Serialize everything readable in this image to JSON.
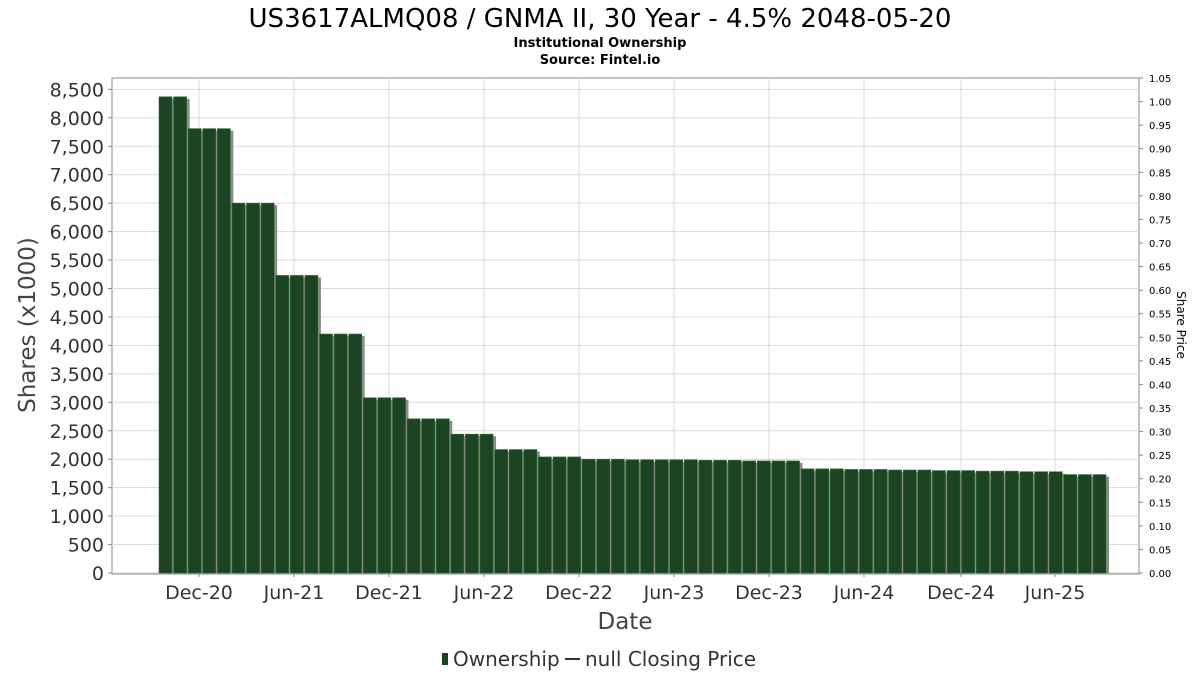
{
  "title": "US3617ALMQ08 / GNMA II, 30 Year - 4.5% 2048-05-20",
  "subtitle_lines": [
    "Institutional Ownership",
    "Source: Fintel.io"
  ],
  "legend": {
    "ownership": "Ownership",
    "price": "null Closing Price"
  },
  "colors": {
    "bar": "#1c4423",
    "bar_edge": "#2f6a38",
    "shadow": "#8c8c8c",
    "grid": "#d9d9d9",
    "axis": "#888888"
  },
  "chart_data": {
    "type": "bar",
    "title": "US3617ALMQ08 / GNMA II, 30 Year - 4.5% 2048-05-20",
    "xlabel": "Date",
    "ylabel": "Shares (x1000)",
    "y2label": "Share Price",
    "ylim": [
      0,
      8700
    ],
    "y2lim": [
      0,
      1.05
    ],
    "grid": true,
    "legend_position": "bottom",
    "x_tick_labels": [
      "Dec-20",
      "Jun-21",
      "Dec-21",
      "Jun-22",
      "Dec-22",
      "Jun-23",
      "Dec-23",
      "Jun-24",
      "Dec-24",
      "Jun-25"
    ],
    "y_tick_labels": [
      "0",
      "500",
      "1,000",
      "1,500",
      "2,000",
      "2,500",
      "3,000",
      "3,500",
      "4,000",
      "4,500",
      "5,000",
      "5,500",
      "6,000",
      "6,500",
      "7,000",
      "7,500",
      "8,000",
      "8,500"
    ],
    "y2_tick_labels": [
      "0.00",
      "0.05",
      "0.10",
      "0.15",
      "0.20",
      "0.25",
      "0.30",
      "0.35",
      "0.40",
      "0.45",
      "0.50",
      "0.55",
      "0.60",
      "0.65",
      "0.70",
      "0.75",
      "0.80",
      "0.85",
      "0.90",
      "0.95",
      "1.00",
      "1.05"
    ],
    "series": [
      {
        "name": "Ownership",
        "values": [
          8370,
          8370,
          7810,
          7810,
          7810,
          6500,
          6500,
          6500,
          5230,
          5230,
          5230,
          4200,
          4200,
          4200,
          3080,
          3080,
          3080,
          2710,
          2710,
          2710,
          2440,
          2440,
          2440,
          2170,
          2170,
          2170,
          2040,
          2040,
          2040,
          2000,
          2000,
          2000,
          1990,
          1990,
          1990,
          1990,
          1990,
          1980,
          1980,
          1980,
          1970,
          1970,
          1970,
          1970,
          1830,
          1830,
          1830,
          1820,
          1820,
          1820,
          1810,
          1810,
          1810,
          1800,
          1800,
          1800,
          1790,
          1790,
          1790,
          1780,
          1780,
          1780,
          1730,
          1730,
          1730
        ]
      }
    ]
  }
}
